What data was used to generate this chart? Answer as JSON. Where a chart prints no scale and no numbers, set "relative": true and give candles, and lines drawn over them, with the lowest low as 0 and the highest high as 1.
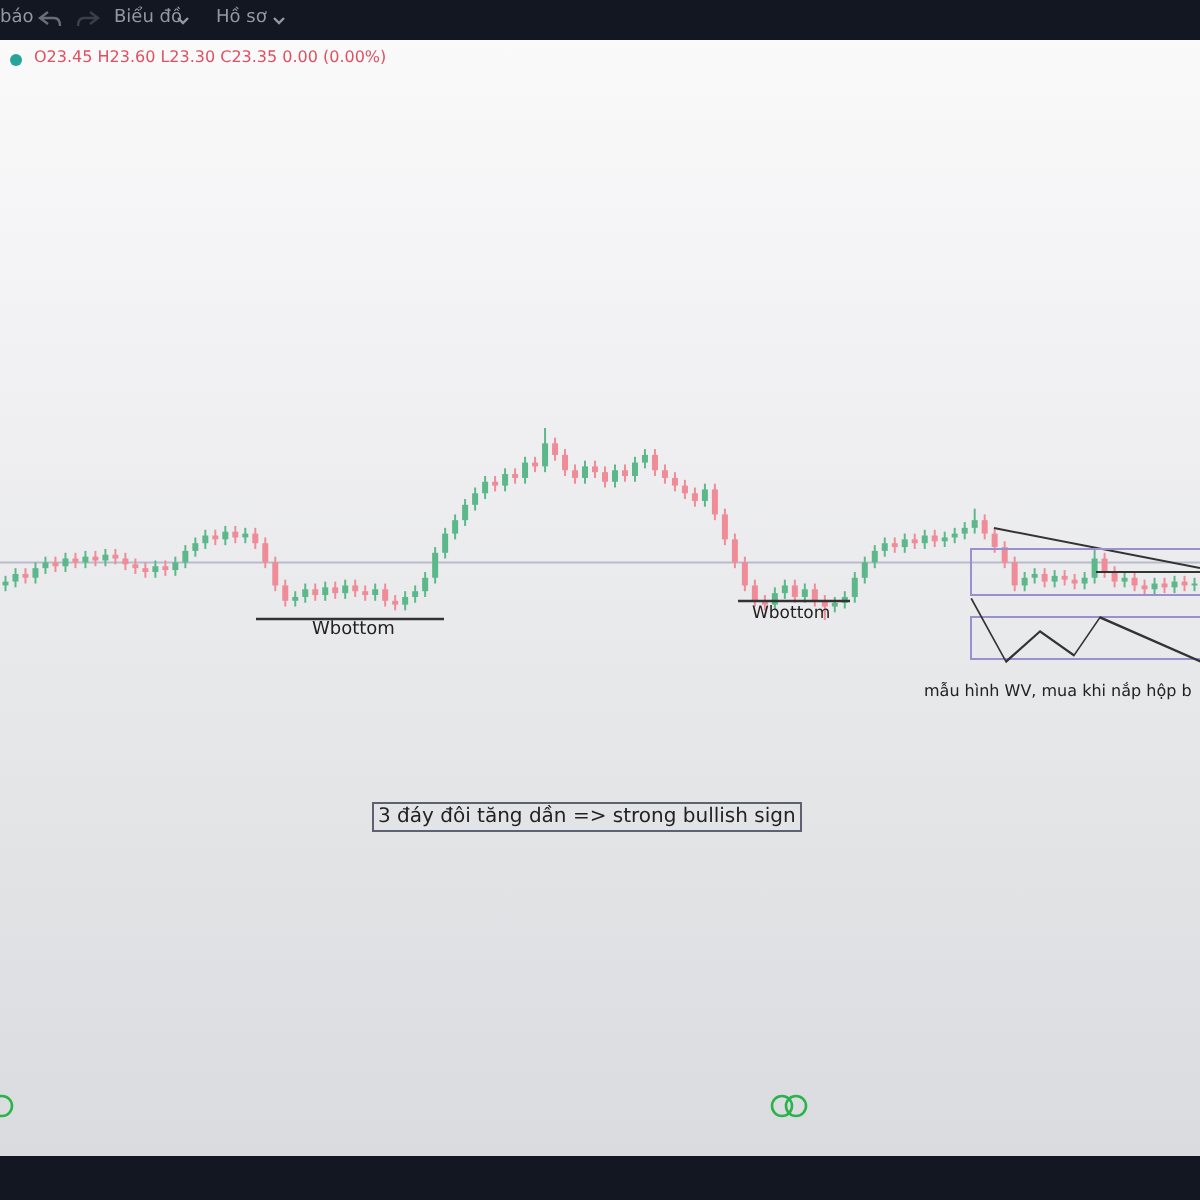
{
  "chart_data": {
    "type": "candlestick",
    "relative": true,
    "subtitle": "O23.45 H23.60 L23.30 C23.35 0.00 (0.00%)",
    "annotations": [
      "Wbottom",
      "Wbottom",
      "mẫu hình WV, mua khi nắp hộp b",
      "3 đáy đôi tăng dần => strong bullish sign",
      "báo",
      "Biểu đồ",
      "Hồ sơ"
    ],
    "categories": [
      null,
      null,
      null,
      null,
      null,
      null,
      null,
      null,
      null,
      null,
      null,
      null,
      null,
      null,
      null,
      null,
      null,
      null,
      null,
      null,
      null,
      null,
      null,
      null,
      null,
      null,
      null,
      null,
      null,
      null,
      null,
      null,
      null,
      null,
      null,
      null,
      null,
      null,
      null,
      null,
      null,
      null,
      null,
      null,
      null,
      null,
      null,
      null,
      null,
      null,
      null,
      null,
      null,
      null,
      null,
      null,
      null,
      null,
      null,
      null,
      null,
      null,
      null,
      null,
      null,
      null,
      null,
      null,
      null,
      null,
      null,
      null,
      null,
      null,
      null,
      null,
      null,
      null,
      null,
      null,
      null,
      null,
      null,
      null,
      null,
      null,
      null,
      null,
      null,
      null,
      null,
      null,
      null,
      null,
      null,
      null,
      null,
      null,
      null,
      null,
      null,
      null,
      null,
      null,
      null,
      null,
      null,
      null,
      null,
      null,
      null,
      null,
      null,
      null,
      null,
      null,
      null,
      null,
      null,
      null
    ],
    "ohlc": [
      [
        0.18,
        0.23,
        0.15,
        0.2
      ],
      [
        0.2,
        0.27,
        0.17,
        0.24
      ],
      [
        0.24,
        0.27,
        0.19,
        0.22
      ],
      [
        0.22,
        0.3,
        0.19,
        0.27
      ],
      [
        0.27,
        0.33,
        0.24,
        0.3
      ],
      [
        0.3,
        0.33,
        0.25,
        0.28
      ],
      [
        0.28,
        0.35,
        0.25,
        0.32
      ],
      [
        0.32,
        0.35,
        0.27,
        0.3
      ],
      [
        0.3,
        0.36,
        0.27,
        0.33
      ],
      [
        0.33,
        0.36,
        0.28,
        0.31
      ],
      [
        0.31,
        0.37,
        0.28,
        0.34
      ],
      [
        0.34,
        0.37,
        0.29,
        0.32
      ],
      [
        0.32,
        0.35,
        0.26,
        0.29
      ],
      [
        0.29,
        0.32,
        0.24,
        0.27
      ],
      [
        0.27,
        0.3,
        0.22,
        0.25
      ],
      [
        0.25,
        0.31,
        0.22,
        0.28
      ],
      [
        0.28,
        0.31,
        0.23,
        0.26
      ],
      [
        0.26,
        0.33,
        0.23,
        0.3
      ],
      [
        0.3,
        0.39,
        0.27,
        0.36
      ],
      [
        0.36,
        0.43,
        0.33,
        0.4
      ],
      [
        0.4,
        0.47,
        0.37,
        0.44
      ],
      [
        0.44,
        0.47,
        0.39,
        0.42
      ],
      [
        0.42,
        0.49,
        0.39,
        0.46
      ],
      [
        0.46,
        0.49,
        0.4,
        0.43
      ],
      [
        0.43,
        0.48,
        0.4,
        0.45
      ],
      [
        0.45,
        0.48,
        0.37,
        0.4
      ],
      [
        0.4,
        0.43,
        0.27,
        0.3
      ],
      [
        0.3,
        0.33,
        0.15,
        0.18
      ],
      [
        0.18,
        0.21,
        0.07,
        0.1
      ],
      [
        0.1,
        0.15,
        0.07,
        0.12
      ],
      [
        0.12,
        0.19,
        0.09,
        0.16
      ],
      [
        0.16,
        0.19,
        0.1,
        0.13
      ],
      [
        0.13,
        0.2,
        0.1,
        0.17
      ],
      [
        0.17,
        0.2,
        0.11,
        0.14
      ],
      [
        0.14,
        0.21,
        0.11,
        0.18
      ],
      [
        0.18,
        0.21,
        0.12,
        0.15
      ],
      [
        0.15,
        0.18,
        0.1,
        0.13
      ],
      [
        0.13,
        0.19,
        0.1,
        0.16
      ],
      [
        0.16,
        0.19,
        0.07,
        0.1
      ],
      [
        0.1,
        0.13,
        0.05,
        0.08
      ],
      [
        0.08,
        0.15,
        0.05,
        0.12
      ],
      [
        0.12,
        0.18,
        0.09,
        0.15
      ],
      [
        0.15,
        0.25,
        0.12,
        0.22
      ],
      [
        0.22,
        0.38,
        0.19,
        0.35
      ],
      [
        0.35,
        0.48,
        0.32,
        0.45
      ],
      [
        0.45,
        0.55,
        0.42,
        0.52
      ],
      [
        0.52,
        0.63,
        0.49,
        0.6
      ],
      [
        0.6,
        0.69,
        0.57,
        0.66
      ],
      [
        0.66,
        0.75,
        0.63,
        0.72
      ],
      [
        0.72,
        0.75,
        0.67,
        0.7
      ],
      [
        0.7,
        0.79,
        0.67,
        0.76
      ],
      [
        0.76,
        0.79,
        0.71,
        0.74
      ],
      [
        0.74,
        0.85,
        0.71,
        0.82
      ],
      [
        0.82,
        0.85,
        0.77,
        0.8
      ],
      [
        0.8,
        1,
        0.77,
        0.92
      ],
      [
        0.92,
        0.95,
        0.83,
        0.86
      ],
      [
        0.86,
        0.89,
        0.75,
        0.78
      ],
      [
        0.78,
        0.81,
        0.71,
        0.74
      ],
      [
        0.74,
        0.83,
        0.71,
        0.8
      ],
      [
        0.8,
        0.83,
        0.74,
        0.77
      ],
      [
        0.77,
        0.8,
        0.69,
        0.72
      ],
      [
        0.72,
        0.81,
        0.69,
        0.78
      ],
      [
        0.78,
        0.81,
        0.72,
        0.75
      ],
      [
        0.75,
        0.85,
        0.72,
        0.82
      ],
      [
        0.82,
        0.89,
        0.79,
        0.86
      ],
      [
        0.86,
        0.89,
        0.75,
        0.78
      ],
      [
        0.78,
        0.81,
        0.71,
        0.74
      ],
      [
        0.74,
        0.77,
        0.67,
        0.7
      ],
      [
        0.7,
        0.73,
        0.63,
        0.66
      ],
      [
        0.66,
        0.69,
        0.59,
        0.62
      ],
      [
        0.62,
        0.71,
        0.59,
        0.68
      ],
      [
        0.68,
        0.71,
        0.52,
        0.55
      ],
      [
        0.55,
        0.58,
        0.39,
        0.42
      ],
      [
        0.42,
        0.45,
        0.27,
        0.3
      ],
      [
        0.3,
        0.33,
        0.15,
        0.18
      ],
      [
        0.18,
        0.21,
        0.07,
        0.1
      ],
      [
        0.1,
        0.13,
        0.05,
        0.08
      ],
      [
        0.08,
        0.17,
        0.05,
        0.14
      ],
      [
        0.14,
        0.21,
        0.11,
        0.18
      ],
      [
        0.18,
        0.21,
        0.09,
        0.12
      ],
      [
        0.12,
        0.19,
        0.09,
        0.16
      ],
      [
        0.16,
        0.19,
        0.07,
        0.1
      ],
      [
        0.1,
        0.13,
        0,
        0.07
      ],
      [
        0.07,
        0.12,
        0.04,
        0.09
      ],
      [
        0.09,
        0.15,
        0.06,
        0.12
      ],
      [
        0.12,
        0.25,
        0.09,
        0.22
      ],
      [
        0.22,
        0.33,
        0.19,
        0.3
      ],
      [
        0.3,
        0.39,
        0.27,
        0.36
      ],
      [
        0.36,
        0.43,
        0.33,
        0.4
      ],
      [
        0.4,
        0.43,
        0.35,
        0.38
      ],
      [
        0.38,
        0.45,
        0.35,
        0.42
      ],
      [
        0.42,
        0.45,
        0.37,
        0.4
      ],
      [
        0.4,
        0.47,
        0.37,
        0.44
      ],
      [
        0.44,
        0.47,
        0.38,
        0.41
      ],
      [
        0.41,
        0.46,
        0.38,
        0.43
      ],
      [
        0.43,
        0.48,
        0.4,
        0.45
      ],
      [
        0.45,
        0.51,
        0.42,
        0.48
      ],
      [
        0.48,
        0.58,
        0.45,
        0.52
      ],
      [
        0.52,
        0.55,
        0.42,
        0.45
      ],
      [
        0.45,
        0.48,
        0.35,
        0.38
      ],
      [
        0.38,
        0.41,
        0.27,
        0.3
      ],
      [
        0.3,
        0.33,
        0.15,
        0.18
      ],
      [
        0.18,
        0.25,
        0.15,
        0.22
      ],
      [
        0.22,
        0.27,
        0.19,
        0.24
      ],
      [
        0.24,
        0.27,
        0.17,
        0.2
      ],
      [
        0.2,
        0.26,
        0.17,
        0.23
      ],
      [
        0.23,
        0.26,
        0.18,
        0.21
      ],
      [
        0.21,
        0.24,
        0.16,
        0.19
      ],
      [
        0.19,
        0.25,
        0.16,
        0.22
      ],
      [
        0.22,
        0.38,
        0.19,
        0.32
      ],
      [
        0.32,
        0.35,
        0.22,
        0.25
      ],
      [
        0.25,
        0.28,
        0.17,
        0.2
      ],
      [
        0.2,
        0.25,
        0.17,
        0.22
      ],
      [
        0.22,
        0.25,
        0.15,
        0.18
      ],
      [
        0.18,
        0.21,
        0.13,
        0.16
      ],
      [
        0.16,
        0.22,
        0.13,
        0.19
      ],
      [
        0.19,
        0.22,
        0.14,
        0.17
      ],
      [
        0.17,
        0.23,
        0.14,
        0.2
      ],
      [
        0.2,
        0.23,
        0.15,
        0.18
      ],
      [
        0.18,
        0.22,
        0.15,
        0.19
      ]
    ],
    "colors": [
      "#5cb88a",
      "#5cb88a",
      "#ef8c98",
      "#5cb88a",
      "#5cb88a",
      "#ef8c98",
      "#5cb88a",
      "#ef8c98",
      "#5cb88a",
      "#ef8c98",
      "#5cb88a",
      "#ef8c98",
      "#ef8c98",
      "#ef8c98",
      "#ef8c98",
      "#5cb88a",
      "#ef8c98",
      "#5cb88a",
      "#5cb88a",
      "#5cb88a",
      "#5cb88a",
      "#ef8c98",
      "#5cb88a",
      "#ef8c98",
      "#5cb88a",
      "#ef8c98",
      "#ef8c98",
      "#ef8c98",
      "#ef8c98",
      "#5cb88a",
      "#5cb88a",
      "#ef8c98",
      "#5cb88a",
      "#ef8c98",
      "#5cb88a",
      "#ef8c98",
      "#ef8c98",
      "#5cb88a",
      "#ef8c98",
      "#ef8c98",
      "#5cb88a",
      "#5cb88a",
      "#5cb88a",
      "#5cb88a",
      "#5cb88a",
      "#5cb88a",
      "#5cb88a",
      "#5cb88a",
      "#5cb88a",
      "#ef8c98",
      "#5cb88a",
      "#ef8c98",
      "#5cb88a",
      "#ef8c98",
      "#5cb88a",
      "#ef8c98",
      "#ef8c98",
      "#ef8c98",
      "#5cb88a",
      "#ef8c98",
      "#ef8c98",
      "#5cb88a",
      "#ef8c98",
      "#5cb88a",
      "#5cb88a",
      "#ef8c98",
      "#ef8c98",
      "#ef8c98",
      "#ef8c98",
      "#ef8c98",
      "#5cb88a",
      "#ef8c98",
      "#ef8c98",
      "#ef8c98",
      "#ef8c98",
      "#ef8c98",
      "#ef8c98",
      "#5cb88a",
      "#5cb88a",
      "#ef8c98",
      "#5cb88a",
      "#ef8c98",
      "#ef8c98",
      "#5cb88a",
      "#5cb88a",
      "#5cb88a",
      "#5cb88a",
      "#5cb88a",
      "#5cb88a",
      "#ef8c98",
      "#5cb88a",
      "#ef8c98",
      "#5cb88a",
      "#ef8c98",
      "#5cb88a",
      "#5cb88a",
      "#5cb88a",
      "#5cb88a",
      "#ef8c98",
      "#ef8c98",
      "#ef8c98",
      "#ef8c98",
      "#5cb88a",
      "#5cb88a",
      "#ef8c98",
      "#5cb88a",
      "#ef8c98",
      "#ef8c98",
      "#5cb88a",
      "#5cb88a",
      "#ef8c98",
      "#ef8c98",
      "#5cb88a",
      "#ef8c98",
      "#ef8c98",
      "#5cb88a",
      "#ef8c98",
      "#5cb88a",
      "#ef8c98",
      "#5cb88a"
    ],
    "ref_lines": [
      {
        "axis": "y",
        "value": 0.3,
        "color": "#b9bccb"
      }
    ]
  }
}
